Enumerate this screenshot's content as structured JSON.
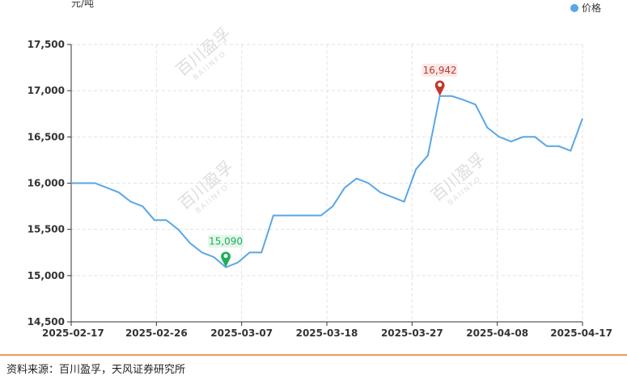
{
  "chart_data": {
    "type": "line",
    "unit_label": "元/吨",
    "legend": [
      {
        "name": "价格",
        "color": "#5aa6e6"
      }
    ],
    "x_labels": [
      "2025-02-17",
      "2025-02-26",
      "2025-03-07",
      "2025-03-18",
      "2025-03-27",
      "2025-04-08",
      "2025-04-17"
    ],
    "ylim": [
      14500,
      17500
    ],
    "yticks": [
      "17,500",
      "17,000",
      "16,500",
      "16,000",
      "15,500",
      "15,000",
      "14,500"
    ],
    "grid": true,
    "series": [
      {
        "name": "价格",
        "color": "#5aa6e6",
        "values": [
          16000,
          16000,
          16000,
          15950,
          15900,
          15800,
          15750,
          15600,
          15600,
          15500,
          15350,
          15250,
          15200,
          15090,
          15140,
          15250,
          15250,
          15650,
          15650,
          15650,
          15650,
          15650,
          15750,
          15950,
          16050,
          16000,
          15900,
          15850,
          15800,
          16150,
          16300,
          16942,
          16942,
          16900,
          16850,
          16600,
          16500,
          16450,
          16500,
          16500,
          16400,
          16400,
          16350,
          16700
        ]
      }
    ],
    "annotations": {
      "min": {
        "label": "15,090",
        "value": 15090,
        "color": "#1fae5a"
      },
      "max": {
        "label": "16,942",
        "value": 16942,
        "color": "#c0392b"
      }
    }
  },
  "watermark": {
    "main": "百川盈孚",
    "sub": "BAIINFO"
  },
  "source": "资料来源：百川盈孚，天风证券研究所"
}
